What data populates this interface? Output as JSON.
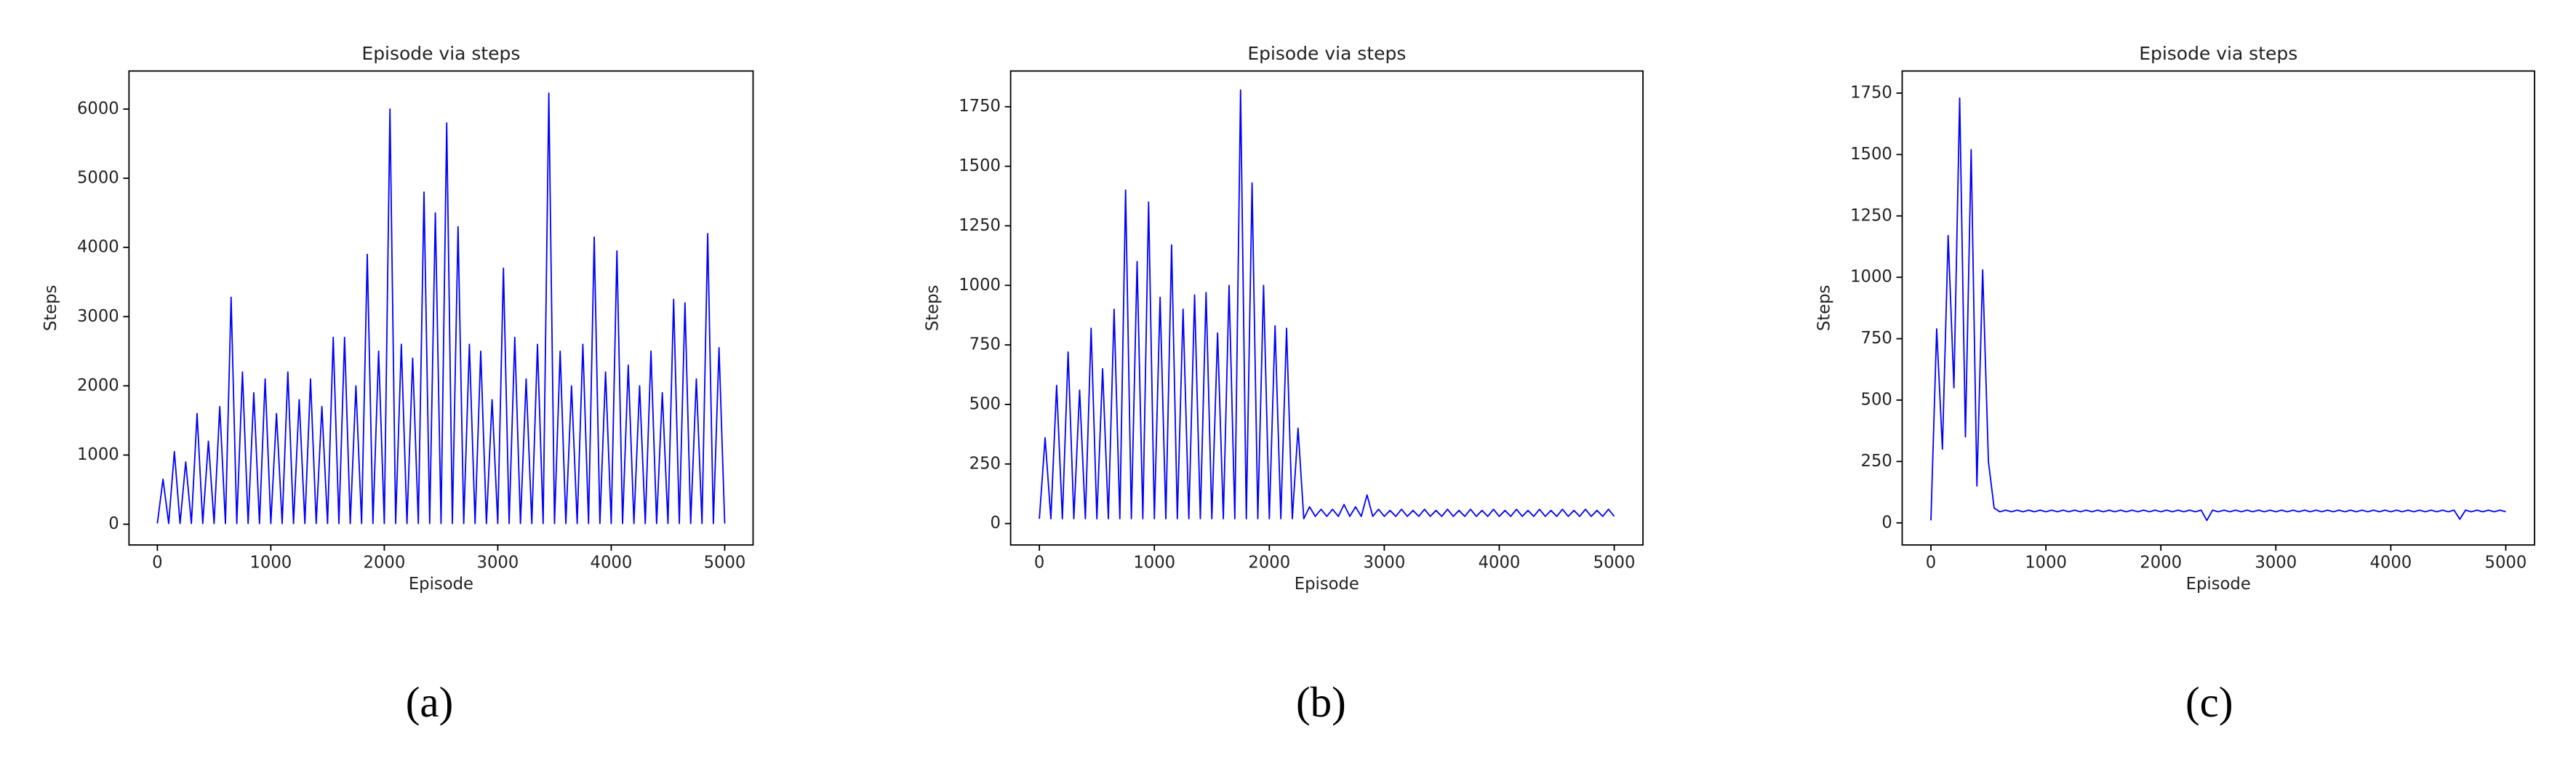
{
  "chart_data": [
    {
      "type": "line",
      "title": "Episode via steps",
      "xlabel": "Episode",
      "ylabel": "Steps",
      "label": "(a)",
      "x": [
        0,
        50,
        100,
        150,
        200,
        250,
        300,
        350,
        400,
        450,
        500,
        550,
        600,
        650,
        700,
        750,
        800,
        850,
        900,
        950,
        1000,
        1050,
        1100,
        1150,
        1200,
        1250,
        1300,
        1350,
        1400,
        1450,
        1500,
        1550,
        1600,
        1650,
        1700,
        1750,
        1800,
        1850,
        1900,
        1950,
        2000,
        2050,
        2100,
        2150,
        2200,
        2250,
        2300,
        2350,
        2400,
        2450,
        2500,
        2550,
        2600,
        2650,
        2700,
        2750,
        2800,
        2850,
        2900,
        2950,
        3000,
        3050,
        3100,
        3150,
        3200,
        3250,
        3300,
        3350,
        3400,
        3450,
        3500,
        3550,
        3600,
        3650,
        3700,
        3750,
        3800,
        3850,
        3900,
        3950,
        4000,
        4050,
        4100,
        4150,
        4200,
        4250,
        4300,
        4350,
        4400,
        4450,
        4500,
        4550,
        4600,
        4650,
        4700,
        4750,
        4800,
        4850,
        4900,
        4950,
        5000
      ],
      "series": [
        {
          "color": "#0000ff",
          "values": [
            10,
            650,
            10,
            1050,
            10,
            900,
            10,
            1600,
            10,
            1200,
            10,
            1700,
            10,
            3280,
            10,
            2200,
            10,
            1900,
            10,
            2100,
            10,
            1600,
            10,
            2200,
            10,
            1800,
            10,
            2100,
            10,
            1700,
            10,
            2700,
            10,
            2700,
            10,
            2000,
            10,
            3900,
            10,
            2500,
            10,
            6000,
            10,
            2600,
            10,
            2400,
            10,
            4800,
            10,
            4500,
            10,
            5800,
            10,
            4300,
            10,
            2600,
            10,
            2500,
            10,
            1800,
            10,
            3700,
            10,
            2700,
            10,
            2100,
            10,
            2600,
            10,
            6230,
            10,
            2500,
            10,
            2000,
            10,
            2600,
            10,
            4150,
            10,
            2200,
            10,
            3950,
            10,
            2300,
            10,
            2000,
            10,
            2500,
            10,
            1900,
            10,
            3250,
            10,
            3200,
            10,
            2100,
            10,
            4200,
            10,
            2550,
            10
          ]
        }
      ],
      "xlim": [
        -250,
        5250
      ],
      "ylim": [
        -300,
        6550
      ],
      "xticks": [
        0,
        1000,
        2000,
        3000,
        4000,
        5000
      ],
      "yticks": [
        0,
        1000,
        2000,
        3000,
        4000,
        5000,
        6000
      ]
    },
    {
      "type": "line",
      "title": "Episode via steps",
      "xlabel": "Episode",
      "ylabel": "Steps",
      "label": "(b)",
      "x": [
        0,
        50,
        100,
        150,
        200,
        250,
        300,
        350,
        400,
        450,
        500,
        550,
        600,
        650,
        700,
        750,
        800,
        850,
        900,
        950,
        1000,
        1050,
        1100,
        1150,
        1200,
        1250,
        1300,
        1350,
        1400,
        1450,
        1500,
        1550,
        1600,
        1650,
        1700,
        1750,
        1800,
        1850,
        1900,
        1950,
        2000,
        2050,
        2100,
        2150,
        2200,
        2250,
        2300,
        2350,
        2400,
        2450,
        2500,
        2550,
        2600,
        2650,
        2700,
        2750,
        2800,
        2850,
        2900,
        2950,
        3000,
        3050,
        3100,
        3150,
        3200,
        3250,
        3300,
        3350,
        3400,
        3450,
        3500,
        3550,
        3600,
        3650,
        3700,
        3750,
        3800,
        3850,
        3900,
        3950,
        4000,
        4050,
        4100,
        4150,
        4200,
        4250,
        4300,
        4350,
        4400,
        4450,
        4500,
        4550,
        4600,
        4650,
        4700,
        4750,
        4800,
        4850,
        4900,
        4950,
        5000
      ],
      "series": [
        {
          "color": "#0000ff",
          "values": [
            20,
            360,
            20,
            580,
            20,
            720,
            20,
            560,
            20,
            820,
            20,
            650,
            20,
            900,
            20,
            1400,
            20,
            1100,
            20,
            1350,
            20,
            950,
            20,
            1170,
            20,
            900,
            20,
            960,
            20,
            970,
            20,
            800,
            20,
            1000,
            20,
            1820,
            20,
            1430,
            20,
            1000,
            20,
            830,
            20,
            820,
            20,
            400,
            20,
            70,
            30,
            60,
            30,
            60,
            30,
            80,
            30,
            70,
            30,
            120,
            30,
            60,
            30,
            55,
            30,
            60,
            30,
            55,
            30,
            60,
            30,
            55,
            30,
            60,
            30,
            55,
            30,
            60,
            30,
            55,
            30,
            60,
            30,
            55,
            30,
            60,
            30,
            55,
            30,
            60,
            30,
            55,
            30,
            60,
            30,
            55,
            30,
            60,
            30,
            55,
            30,
            60,
            30
          ]
        }
      ],
      "xlim": [
        -250,
        5250
      ],
      "ylim": [
        -90,
        1900
      ],
      "xticks": [
        0,
        1000,
        2000,
        3000,
        4000,
        5000
      ],
      "yticks": [
        0,
        250,
        500,
        750,
        1000,
        1250,
        1500,
        1750
      ]
    },
    {
      "type": "line",
      "title": "Episode via steps",
      "xlabel": "Episode",
      "ylabel": "Steps",
      "label": "(c)",
      "x": [
        0,
        50,
        100,
        150,
        200,
        250,
        300,
        350,
        400,
        450,
        500,
        550,
        600,
        650,
        700,
        750,
        800,
        850,
        900,
        950,
        1000,
        1050,
        1100,
        1150,
        1200,
        1250,
        1300,
        1350,
        1400,
        1450,
        1500,
        1550,
        1600,
        1650,
        1700,
        1750,
        1800,
        1850,
        1900,
        1950,
        2000,
        2050,
        2100,
        2150,
        2200,
        2250,
        2300,
        2350,
        2400,
        2450,
        2500,
        2550,
        2600,
        2650,
        2700,
        2750,
        2800,
        2850,
        2900,
        2950,
        3000,
        3050,
        3100,
        3150,
        3200,
        3250,
        3300,
        3350,
        3400,
        3450,
        3500,
        3550,
        3600,
        3650,
        3700,
        3750,
        3800,
        3850,
        3900,
        3950,
        4000,
        4050,
        4100,
        4150,
        4200,
        4250,
        4300,
        4350,
        4400,
        4450,
        4500,
        4550,
        4600,
        4650,
        4700,
        4750,
        4800,
        4850,
        4900,
        4950,
        5000
      ],
      "series": [
        {
          "color": "#0000ff",
          "values": [
            10,
            790,
            300,
            1170,
            550,
            1730,
            350,
            1520,
            150,
            1030,
            250,
            60,
            45,
            52,
            45,
            52,
            45,
            52,
            45,
            52,
            45,
            52,
            45,
            52,
            45,
            52,
            45,
            52,
            45,
            52,
            45,
            52,
            45,
            52,
            45,
            52,
            45,
            52,
            45,
            52,
            45,
            52,
            45,
            52,
            45,
            52,
            45,
            52,
            10,
            52,
            45,
            52,
            45,
            52,
            45,
            52,
            45,
            52,
            45,
            52,
            45,
            52,
            45,
            52,
            45,
            52,
            45,
            52,
            45,
            52,
            45,
            52,
            45,
            52,
            45,
            52,
            45,
            52,
            45,
            52,
            45,
            52,
            45,
            52,
            45,
            52,
            45,
            52,
            45,
            52,
            45,
            52,
            15,
            52,
            45,
            52,
            45,
            52,
            45,
            52,
            45
          ]
        }
      ],
      "xlim": [
        -250,
        5250
      ],
      "ylim": [
        -90,
        1840
      ],
      "xticks": [
        0,
        1000,
        2000,
        3000,
        4000,
        5000
      ],
      "yticks": [
        0,
        250,
        500,
        750,
        1000,
        1250,
        1500,
        1750
      ]
    }
  ]
}
